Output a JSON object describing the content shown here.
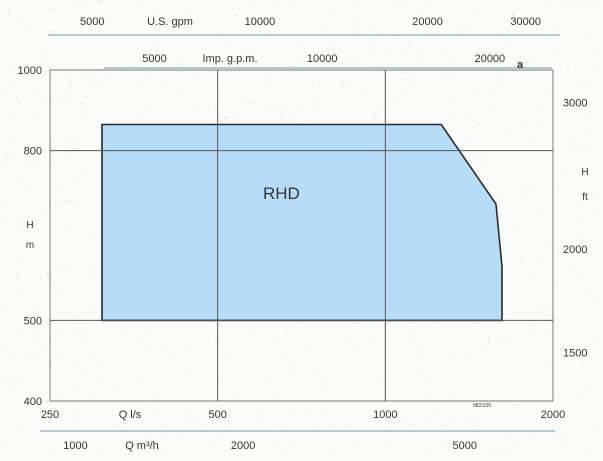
{
  "chart_data": {
    "type": "area",
    "title": "",
    "x_scale": "log",
    "y_scale": "log",
    "x_range": [
      250,
      2000
    ],
    "y_range_left": [
      400,
      1000
    ],
    "region_label": "RHD",
    "region_color": "#b7dcf7",
    "region_outline": "#2a2a2a",
    "region_polygon": [
      {
        "q": 310,
        "h": 500
      },
      {
        "q": 310,
        "h": 860
      },
      {
        "q": 1260,
        "h": 860
      },
      {
        "q": 1580,
        "h": 690
      },
      {
        "q": 1620,
        "h": 580
      },
      {
        "q": 1620,
        "h": 500
      }
    ],
    "grid_x": [
      500,
      1000
    ],
    "grid_y": [
      500,
      800
    ],
    "bottom_axis": {
      "label": "Q  l/s",
      "ticks": [
        {
          "text": "250",
          "q": 250
        },
        {
          "text": "500",
          "q": 500
        },
        {
          "text": "1000",
          "q": 1000
        },
        {
          "text": "2000",
          "q": 2000
        }
      ]
    },
    "bottom_axis_2": {
      "label": "Q m³/h",
      "ticks": [
        {
          "text": "1000",
          "q": 277.8
        },
        {
          "text": "2000",
          "q": 555.6
        },
        {
          "text": "5000",
          "q": 1388.9
        }
      ]
    },
    "top_axis_1": {
      "label": "U.S. gpm",
      "ticks": [
        {
          "text": "5000",
          "q": 315.4
        },
        {
          "text": "10000",
          "q": 630.9
        },
        {
          "text": "20000",
          "q": 1261.8
        },
        {
          "text": "30000",
          "q": 1892.7
        }
      ]
    },
    "top_axis_2": {
      "label": "Imp. g.p.m.",
      "ticks": [
        {
          "text": "5000",
          "q": 378.8
        },
        {
          "text": "10000",
          "q": 757.7
        },
        {
          "text": "20000",
          "q": 1515.4
        }
      ]
    },
    "left_axis": {
      "label_line1": "H",
      "label_line2": "m",
      "ticks": [
        {
          "text": "1000",
          "h": 1000
        },
        {
          "text": "800",
          "h": 800
        },
        {
          "text": "500",
          "h": 500
        },
        {
          "text": "400",
          "h": 400
        }
      ]
    },
    "right_axis": {
      "label_line1": "H",
      "label_line2": "ft",
      "ticks": [
        {
          "text": "3000",
          "h": 914.4
        },
        {
          "text": "2000",
          "h": 609.6
        },
        {
          "text": "1500",
          "h": 457.2
        }
      ]
    },
    "corner_mark": "a",
    "watermark": "982/100"
  }
}
